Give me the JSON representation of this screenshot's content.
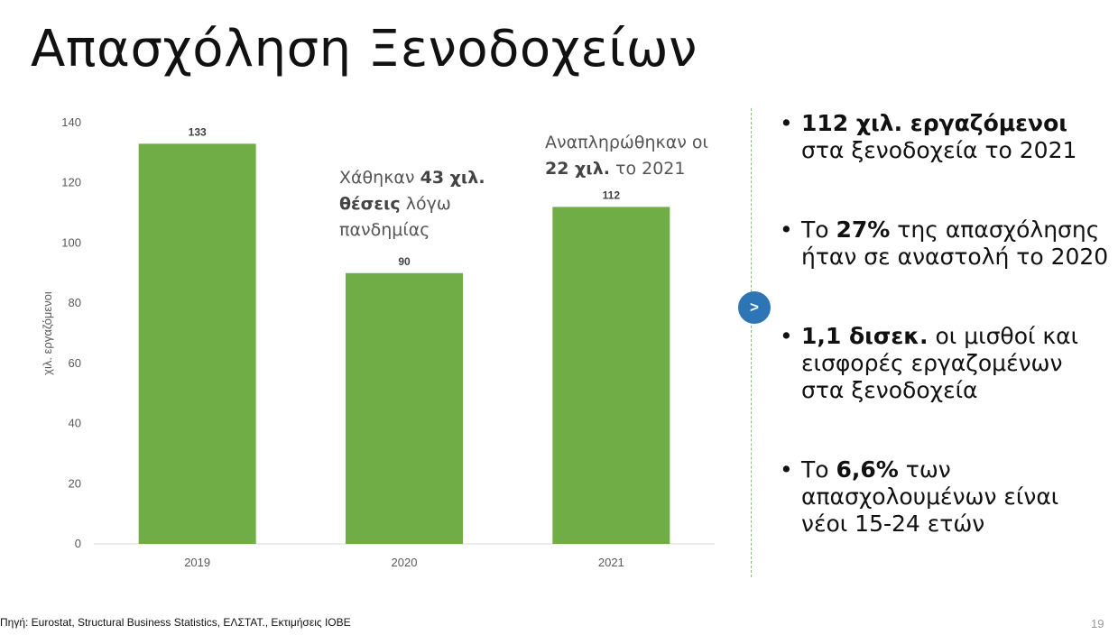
{
  "slide": {
    "title": "Απασχόληση Ξενοδοχείων",
    "source": "Πηγή: Eurostat, Structural Business Statistics, ΕΛΣΤΑΤ., Εκτιμήσεις ΙΟΒΕ",
    "page_number": "19",
    "nav_button_label": ">"
  },
  "annotations": {
    "a2020": {
      "pre": "Χάθηκαν ",
      "bold": "43 χιλ. θέσεις",
      "post": " λόγω πανδημίας"
    },
    "a2021": {
      "pre": "Αναπληρώθηκαν οι ",
      "bold": "22 χιλ.",
      "post": " το 2021"
    }
  },
  "bullets": [
    {
      "bold": "112 χιλ. εργαζόμενοι",
      "text": " στα ξενοδοχεία το 2021"
    },
    {
      "pre": "Το ",
      "bold": "27%",
      "text": " της απασχόλησης ήταν σε αναστολή το 2020"
    },
    {
      "bold": "1,1 δισεκ.",
      "text": " οι μισθοί και εισφορές εργαζομένων στα ξενοδοχεία"
    },
    {
      "pre": "Το ",
      "bold": "6,6%",
      "text": " των απασχολουμένων είναι νέοι 15-24 ετών"
    }
  ],
  "chart_data": {
    "type": "bar",
    "categories": [
      "2019",
      "2020",
      "2021"
    ],
    "values": [
      133,
      90,
      112
    ],
    "title": "",
    "xlabel": "",
    "ylabel": "χιλ. εργαζόμενοι",
    "ylim": [
      0,
      140
    ],
    "yticks": [
      0,
      20,
      40,
      60,
      80,
      100,
      120,
      140
    ],
    "bar_color": "#70ad47",
    "grid": false,
    "legend": "none"
  }
}
